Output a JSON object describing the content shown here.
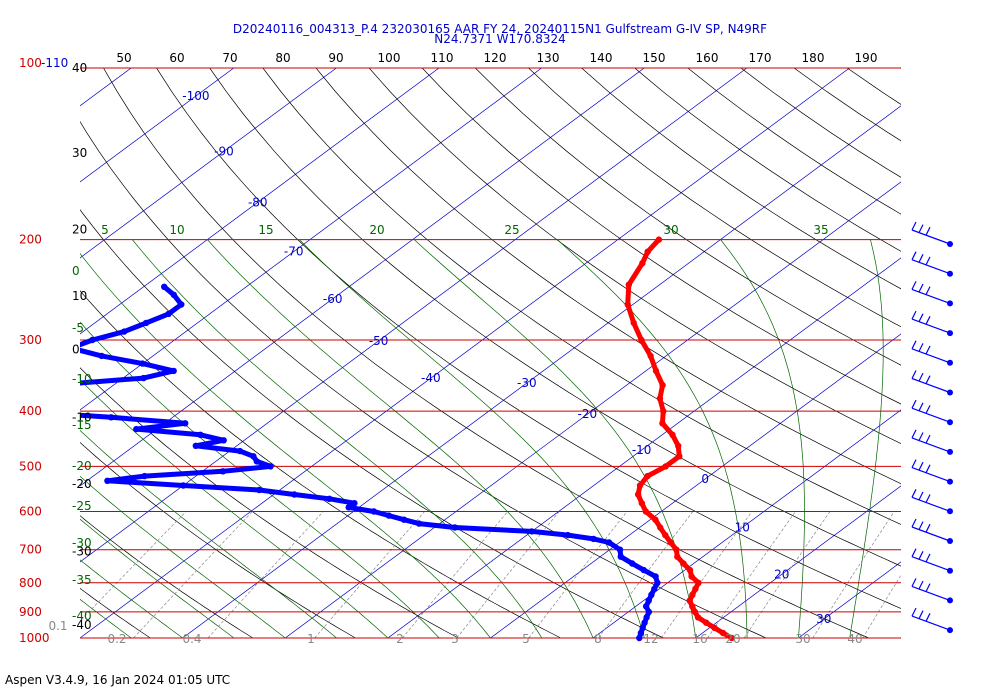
{
  "chart_data": {
    "type": "skew-t",
    "title_line1": "D20240116_004313_P.4 232030165 AAR FY 24, 20240115N1 Gulfstream G-IV SP, N49RF",
    "title_line2": "N24.7371 W170.8324",
    "corner_label_red": "100",
    "corner_label_blue": "-110",
    "footer": "Aspen V3.4.9, 16 Jan 2024  01:05 UTC",
    "pressure_levels": [
      {
        "p": 100,
        "label": "",
        "height_label": "40"
      },
      {
        "p": 200,
        "label": "200",
        "height_label": ""
      },
      {
        "p": 300,
        "label": "300",
        "height_label": ""
      },
      {
        "p": 400,
        "label": "400",
        "height_label": ""
      },
      {
        "p": 500,
        "label": "500",
        "height_label": ""
      },
      {
        "p": 600,
        "label": "600",
        "height_label": ""
      },
      {
        "p": 700,
        "label": "700",
        "height_label": ""
      },
      {
        "p": 800,
        "label": "800",
        "height_label": ""
      },
      {
        "p": 900,
        "label": "900",
        "height_label": ""
      },
      {
        "p": 1000,
        "label": "1000",
        "height_label": ""
      }
    ],
    "left_height_labels": [
      {
        "p": 141,
        "label": "30"
      },
      {
        "p": 192,
        "label": "20"
      },
      {
        "p": 251,
        "label": "10"
      },
      {
        "p": 312,
        "label": "0"
      },
      {
        "p": 410,
        "label": "-10"
      },
      {
        "p": 537,
        "label": "-20"
      },
      {
        "p": 705,
        "label": "-30"
      },
      {
        "p": 948,
        "label": "-40"
      }
    ],
    "theta_top_labels": [
      "50",
      "60",
      "70",
      "80",
      "90",
      "100",
      "110",
      "120",
      "130",
      "140",
      "150",
      "160",
      "170",
      "180",
      "190"
    ],
    "temp_labels": [
      {
        "t": -100,
        "p": 112
      },
      {
        "t": -90,
        "p": 140
      },
      {
        "t": -80,
        "p": 172
      },
      {
        "t": -70,
        "p": 210
      },
      {
        "t": -60,
        "p": 254
      },
      {
        "t": -50,
        "p": 301
      },
      {
        "t": -40,
        "p": 350
      },
      {
        "t": -30,
        "p": 357
      },
      {
        "t": -20,
        "p": 405
      },
      {
        "t": -10,
        "p": 468
      },
      {
        "t": 0,
        "p": 526
      },
      {
        "t": 10,
        "p": 640
      },
      {
        "t": 20,
        "p": 773
      },
      {
        "t": 30,
        "p": 927
      }
    ],
    "theta_e_labels": [
      "5",
      "10",
      "15",
      "20",
      "25",
      "30",
      "35"
    ],
    "theta_e_left_labels": [
      "0",
      "-5",
      "-10",
      "-15",
      "-20",
      "-25",
      "-30",
      "-35",
      "-40"
    ],
    "mixing_ratio_labels": [
      "0.1",
      "0.2",
      "0.4",
      "1",
      "2",
      "3",
      "5",
      "8",
      "12",
      "16",
      "20",
      "30",
      "40"
    ],
    "temperature_profile": [
      [
        200,
        -36.0
      ],
      [
        210,
        -35.5
      ],
      [
        220,
        -34.5
      ],
      [
        240,
        -33.0
      ],
      [
        260,
        -30.5
      ],
      [
        280,
        -27.5
      ],
      [
        300,
        -24.5
      ],
      [
        320,
        -21.5
      ],
      [
        340,
        -19.0
      ],
      [
        360,
        -16.5
      ],
      [
        380,
        -15.0
      ],
      [
        400,
        -13.0
      ],
      [
        420,
        -11.5
      ],
      [
        440,
        -9.0
      ],
      [
        460,
        -7.0
      ],
      [
        480,
        -5.5
      ],
      [
        500,
        -5.5
      ],
      [
        520,
        -6.0
      ],
      [
        540,
        -5.5
      ],
      [
        560,
        -4.5
      ],
      [
        580,
        -3.0
      ],
      [
        600,
        -1.5
      ],
      [
        620,
        0.5
      ],
      [
        640,
        2.0
      ],
      [
        660,
        3.5
      ],
      [
        680,
        5.0
      ],
      [
        700,
        6.5
      ],
      [
        720,
        7.5
      ],
      [
        740,
        9.0
      ],
      [
        760,
        10.5
      ],
      [
        780,
        11.5
      ],
      [
        800,
        13.0
      ],
      [
        820,
        13.5
      ],
      [
        840,
        14.0
      ],
      [
        860,
        14.5
      ],
      [
        880,
        15.5
      ],
      [
        900,
        16.5
      ],
      [
        920,
        17.5
      ],
      [
        940,
        19.0
      ],
      [
        960,
        20.5
      ],
      [
        980,
        22.0
      ],
      [
        1000,
        23.5
      ]
    ],
    "dewpoint_profile": [
      [
        242,
        -78
      ],
      [
        250,
        -76
      ],
      [
        260,
        -74
      ],
      [
        270,
        -74
      ],
      [
        280,
        -75
      ],
      [
        290,
        -76
      ],
      [
        300,
        -78
      ],
      [
        310,
        -79
      ],
      [
        320,
        -75
      ],
      [
        330,
        -70
      ],
      [
        340,
        -66
      ],
      [
        350,
        -68
      ],
      [
        360,
        -76
      ],
      [
        370,
        -82
      ],
      [
        380,
        -84
      ],
      [
        390,
        -82
      ],
      [
        400,
        -76
      ],
      [
        410,
        -66
      ],
      [
        420,
        -58
      ],
      [
        430,
        -62
      ],
      [
        440,
        -55
      ],
      [
        450,
        -52
      ],
      [
        460,
        -54
      ],
      [
        470,
        -49
      ],
      [
        480,
        -47
      ],
      [
        490,
        -46
      ],
      [
        500,
        -44
      ],
      [
        510,
        -48
      ],
      [
        520,
        -55
      ],
      [
        530,
        -58
      ],
      [
        540,
        -50
      ],
      [
        550,
        -42
      ],
      [
        560,
        -38
      ],
      [
        570,
        -34
      ],
      [
        580,
        -31
      ],
      [
        590,
        -31
      ],
      [
        600,
        -28
      ],
      [
        610,
        -26
      ],
      [
        620,
        -24
      ],
      [
        630,
        -22
      ],
      [
        640,
        -18
      ],
      [
        650,
        -10
      ],
      [
        660,
        -6
      ],
      [
        670,
        -3
      ],
      [
        680,
        -1
      ],
      [
        700,
        1
      ],
      [
        720,
        2
      ],
      [
        740,
        4
      ],
      [
        760,
        6
      ],
      [
        780,
        8
      ],
      [
        800,
        9
      ],
      [
        820,
        9.5
      ],
      [
        840,
        10
      ],
      [
        860,
        10.5
      ],
      [
        880,
        11
      ],
      [
        900,
        12
      ],
      [
        920,
        12.5
      ],
      [
        940,
        13
      ],
      [
        960,
        13.5
      ],
      [
        980,
        14
      ],
      [
        1000,
        14.5
      ]
    ],
    "wind_barb_levels": [
      200,
      225,
      250,
      275,
      300,
      325,
      350,
      375,
      400,
      425,
      450,
      500,
      550,
      600,
      650,
      700,
      750,
      800,
      850,
      900,
      950
    ],
    "axis": {
      "p_top": 100,
      "p_bottom": 1000,
      "log_p": true,
      "temp_range_at_bottom": [
        -40,
        40
      ]
    },
    "colors": {
      "isobar": "#cc0000",
      "temperature": "#ff0000",
      "dewpoint": "#0000ff",
      "isotherm": "#0000cc",
      "dry_adiabat": "#000000",
      "moist_adiabat": "#006600",
      "mixing_ratio": "#888888",
      "title": "#0000cc"
    }
  }
}
